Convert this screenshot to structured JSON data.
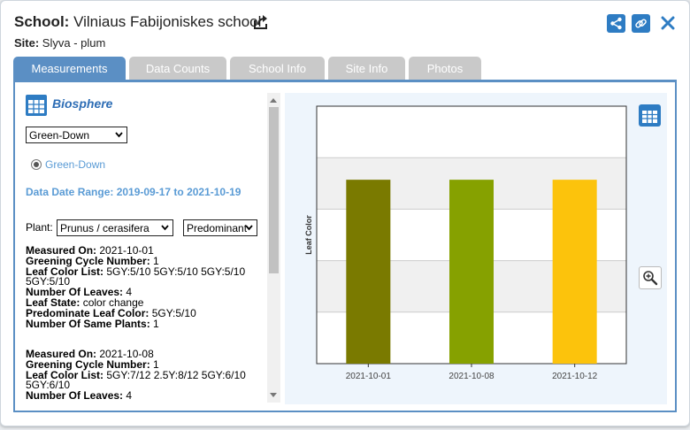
{
  "header": {
    "school_label": "School:",
    "school_name": "Vilniaus Fabijoniskes school",
    "site_label": "Site:",
    "site_name": "Slyva - plum"
  },
  "tabs": [
    {
      "label": "Measurements",
      "active": true
    },
    {
      "label": "Data Counts",
      "active": false
    },
    {
      "label": "School Info",
      "active": false
    },
    {
      "label": "Site Info",
      "active": false
    },
    {
      "label": "Photos",
      "active": false
    }
  ],
  "left": {
    "section_title": "Biosphere",
    "protocol_select": "Green-Down",
    "radio_label": "Green-Down",
    "date_range": "Data Date Range: 2019-09-17 to 2021-10-19",
    "plant_label": "Plant:",
    "plant_select": "Prunus / cerasifera",
    "type_select": "Predominant",
    "measurements": [
      {
        "measured_on_label": "Measured On:",
        "measured_on": "2021-10-01",
        "cycle_label": "Greening Cycle Number:",
        "cycle": "1",
        "color_list_label": "Leaf Color List:",
        "color_list_line1": "5GY:5/10 5GY:5/10 5GY:5/10",
        "color_list_line2": "5GY:5/10",
        "leaves_label": "Number Of Leaves:",
        "leaves": "4",
        "state_label": "Leaf State:",
        "state": "color change",
        "predominate_label": "Predominate Leaf Color:",
        "predominate": "5GY:5/10",
        "same_plants_label": "Number Of Same Plants:",
        "same_plants": "1"
      },
      {
        "measured_on_label": "Measured On:",
        "measured_on": "2021-10-08",
        "cycle_label": "Greening Cycle Number:",
        "cycle": "1",
        "color_list_label": "Leaf Color List:",
        "color_list_line1": "5GY:7/12 2.5Y:8/12 5GY:6/10",
        "color_list_line2": "5GY:6/10",
        "leaves_label": "Number Of Leaves:",
        "leaves": "4"
      }
    ]
  },
  "colors": {
    "accent": "#5b8fc4",
    "icon_blue": "#2e7cc3",
    "link": "#5a9bd5"
  },
  "chart_data": {
    "type": "bar",
    "ylabel": "Leaf Color",
    "xlabel": "",
    "categories": [
      "2021-10-01",
      "2021-10-08",
      "2021-10-12"
    ],
    "values": [
      1,
      1,
      1
    ],
    "bar_colors": [
      "#7a7a00",
      "#86a100",
      "#fcc30c"
    ],
    "ylim": [
      0,
      1.4
    ],
    "grid": true,
    "y_tick_labels_visible": false
  }
}
